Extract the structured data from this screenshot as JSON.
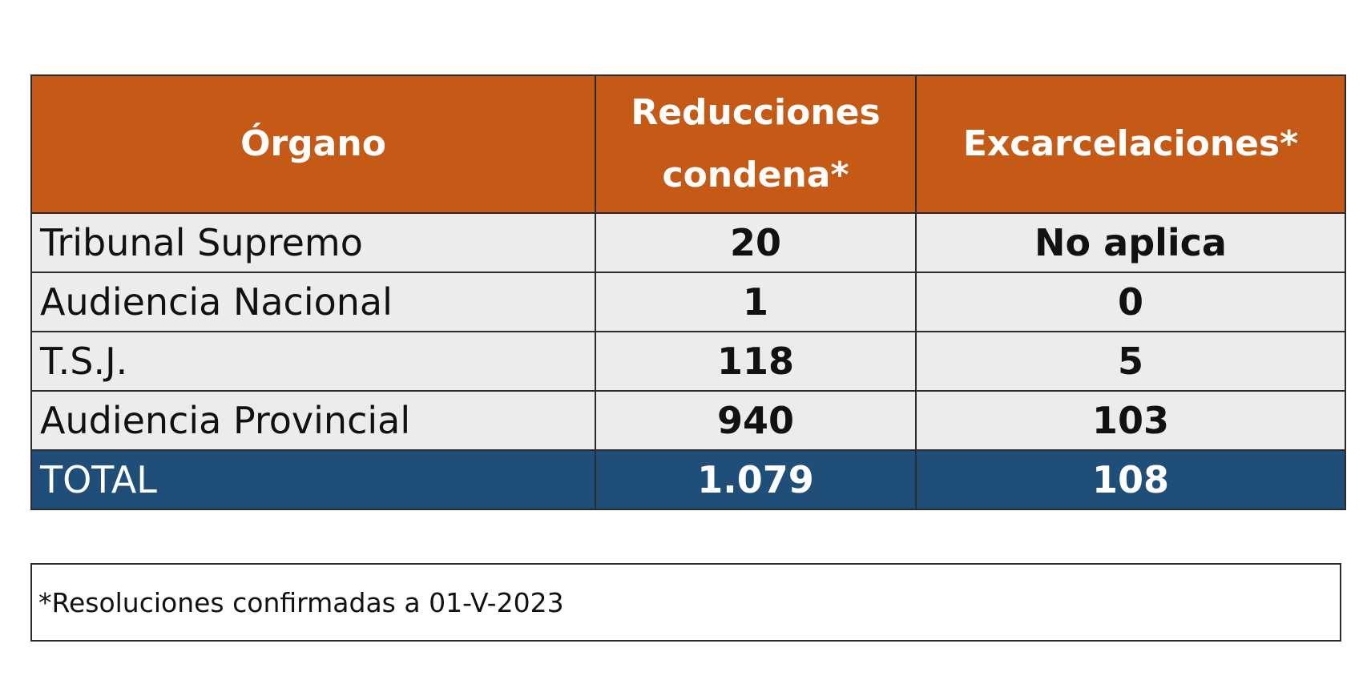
{
  "colors": {
    "header_bg": "#c45a16",
    "row_bg": "#ececec",
    "total_bg": "#1f4e79",
    "border": "#2b2b2b"
  },
  "table": {
    "headers": [
      "Órgano",
      "Reducciones condena*",
      "Excarcelaciones*"
    ],
    "rows": [
      {
        "organo": "Tribunal Supremo",
        "reducciones": "20",
        "excarcelaciones": "No aplica"
      },
      {
        "organo": "Audiencia Nacional",
        "reducciones": "1",
        "excarcelaciones": "0"
      },
      {
        "organo": "T.S.J.",
        "reducciones": "118",
        "excarcelaciones": "5"
      },
      {
        "organo": "Audiencia Provincial",
        "reducciones": "940",
        "excarcelaciones": "103"
      }
    ],
    "total": {
      "label": "TOTAL",
      "reducciones": "1.079",
      "excarcelaciones": "108"
    }
  },
  "footnote": "*Resoluciones confirmadas a 01-V-2023"
}
